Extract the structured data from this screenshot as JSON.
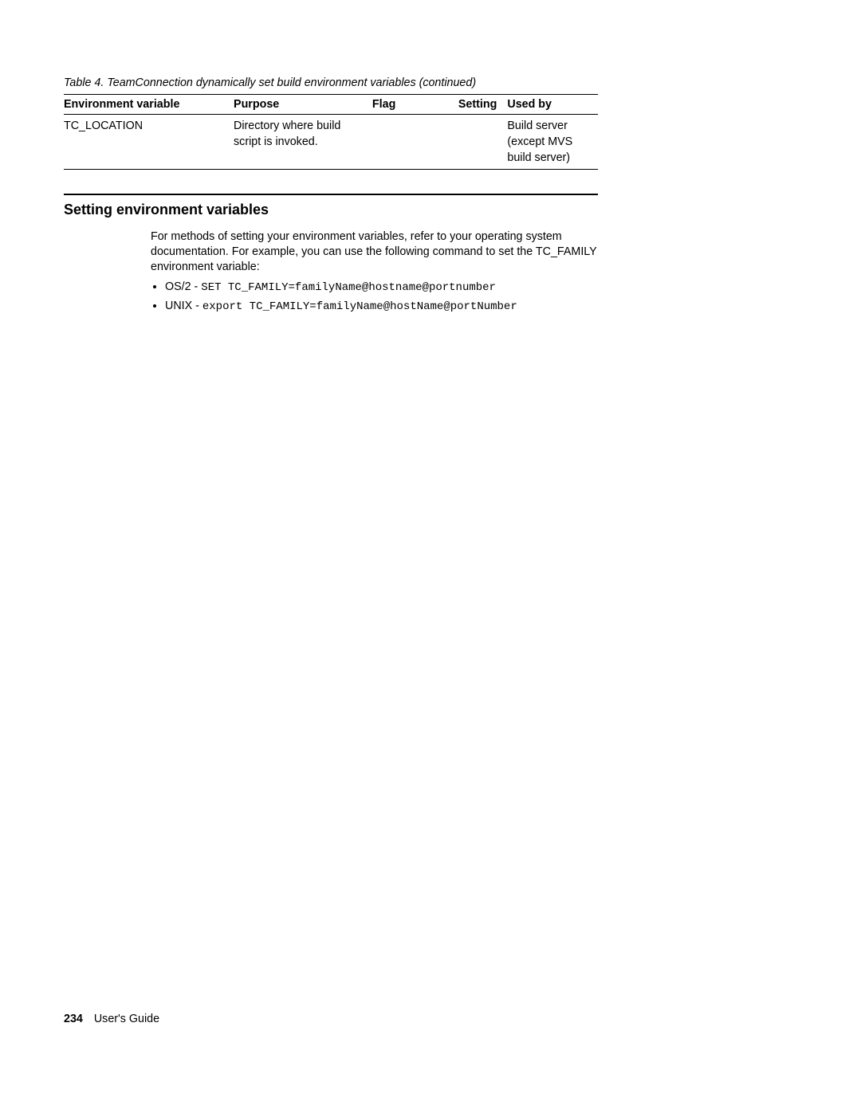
{
  "table": {
    "caption": "Table 4. TeamConnection dynamically set build environment variables  (continued)",
    "headers": {
      "env": "Environment variable",
      "purpose": "Purpose",
      "flag": "Flag",
      "setting": "Setting",
      "usedby": "Used by"
    },
    "row": {
      "env": "TC_LOCATION",
      "purpose": "Directory where build script is invoked.",
      "flag": "",
      "setting": "",
      "usedby": "Build server (except MVS build server)"
    }
  },
  "section": {
    "heading": "Setting environment variables",
    "intro": "For methods of setting your environment variables, refer to your operating system documentation. For example, you can use the following command to set the TC_FAMILY environment variable:",
    "items": [
      {
        "label": "OS/2 - ",
        "code": "SET TC_FAMILY=familyName@hostname@portnumber"
      },
      {
        "label": "UNIX - ",
        "code": "export TC_FAMILY=familyName@hostName@portNumber"
      }
    ]
  },
  "footer": {
    "page_number": "234",
    "doc_title": "User's Guide"
  }
}
